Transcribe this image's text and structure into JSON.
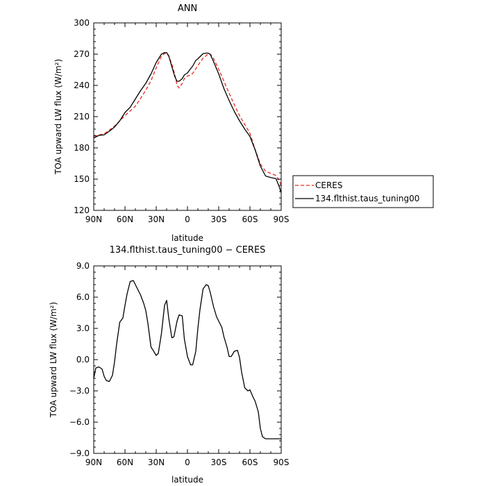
{
  "chart_data": [
    {
      "type": "line",
      "title": "ANN",
      "xlabel": "latitude",
      "ylabel": "TOA upward LW flux (W/m²)",
      "xlim": [
        90,
        -90
      ],
      "ylim": [
        120,
        300
      ],
      "x_ticks": [
        90,
        60,
        30,
        0,
        -30,
        -60,
        -90
      ],
      "x_tick_labels": [
        "90N",
        "60N",
        "30N",
        "0",
        "30S",
        "60S",
        "90S"
      ],
      "y_ticks": [
        120,
        150,
        180,
        210,
        240,
        270,
        300
      ],
      "y_tick_labels": [
        "120",
        "150",
        "180",
        "210",
        "240",
        "270",
        "300"
      ],
      "legend_position": "outside-right",
      "series": [
        {
          "name": "CERES",
          "color": "#e8291e",
          "dash": "dashed",
          "x": [
            90,
            85,
            80,
            75,
            70,
            65,
            60,
            55,
            50,
            45,
            40,
            35,
            30,
            25,
            22,
            20,
            18,
            15,
            12,
            10,
            8,
            5,
            3,
            0,
            -3,
            -5,
            -8,
            -10,
            -12,
            -15,
            -18,
            -20,
            -22,
            -25,
            -30,
            -35,
            -40,
            -45,
            -50,
            -55,
            -60,
            -65,
            -70,
            -75,
            -80,
            -85,
            -88,
            -90
          ],
          "y": [
            191,
            192.5,
            193.5,
            197,
            201,
            206,
            211,
            215.5,
            220,
            227.5,
            235.5,
            244.5,
            257,
            268,
            270.5,
            271,
            268,
            260.5,
            250,
            240,
            237.5,
            242,
            246.5,
            249,
            250,
            251.5,
            256,
            259,
            262,
            266,
            268.5,
            270.5,
            270,
            266,
            255.5,
            244,
            232.5,
            221.5,
            211,
            202.5,
            194,
            178.5,
            164.5,
            157.5,
            155.5,
            153.5,
            149,
            144
          ]
        },
        {
          "name": "134.flthist.taus_tuning00",
          "color": "#000000",
          "dash": "solid",
          "x": [
            90,
            85,
            80,
            75,
            70,
            65,
            60,
            55,
            50,
            45,
            40,
            35,
            30,
            25,
            22,
            20,
            18,
            15,
            12,
            10,
            8,
            5,
            3,
            0,
            -3,
            -5,
            -8,
            -10,
            -12,
            -15,
            -18,
            -20,
            -22,
            -25,
            -30,
            -35,
            -40,
            -45,
            -50,
            -55,
            -60,
            -65,
            -70,
            -75,
            -80,
            -85,
            -88,
            -90
          ],
          "y": [
            189.5,
            192,
            192.5,
            196,
            200,
            206,
            214,
            219,
            227,
            235,
            242,
            251,
            262,
            270,
            271.5,
            271.5,
            268.5,
            258,
            248,
            244,
            244,
            246.5,
            250,
            252,
            256,
            258.5,
            264,
            265.5,
            267.5,
            270.5,
            271,
            271,
            269.5,
            263,
            251,
            237,
            225.5,
            215,
            206,
            198,
            191,
            178,
            162.5,
            153,
            151.5,
            150.5,
            143,
            137
          ]
        }
      ]
    },
    {
      "type": "line",
      "title": "134.flthist.taus_tuning00 − CERES",
      "xlabel": "latitude",
      "ylabel": "TOA upward LW flux (W/m²)",
      "xlim": [
        90,
        -90
      ],
      "ylim": [
        -9,
        9
      ],
      "x_ticks": [
        90,
        60,
        30,
        0,
        -30,
        -60,
        -90
      ],
      "x_tick_labels": [
        "90N",
        "60N",
        "30N",
        "0",
        "30S",
        "60S",
        "90S"
      ],
      "y_ticks": [
        -9,
        -6,
        -3,
        0,
        3,
        6,
        9
      ],
      "y_tick_labels": [
        "−9.0",
        "−6.0",
        "−3.0",
        "0.0",
        "3.0",
        "6.0",
        "9.0"
      ],
      "series": [
        {
          "color": "#000000",
          "dash": "solid",
          "x": [
            90,
            88,
            85,
            82,
            80,
            78,
            75,
            72,
            70,
            68,
            65,
            62,
            60,
            58,
            55,
            52,
            50,
            48,
            45,
            42,
            40,
            38,
            35,
            33,
            30,
            28,
            25,
            22,
            20,
            18,
            15,
            13,
            10,
            8,
            5,
            3,
            0,
            -3,
            -5,
            -8,
            -10,
            -12,
            -15,
            -18,
            -20,
            -22,
            -25,
            -28,
            -30,
            -33,
            -35,
            -38,
            -40,
            -42,
            -45,
            -48,
            -50,
            -52,
            -55,
            -58,
            -60,
            -63,
            -65,
            -68,
            -70,
            -72,
            -75,
            -77,
            -80,
            -82,
            -85,
            -87,
            -90
          ],
          "y": [
            -1.8,
            -0.8,
            -0.7,
            -0.9,
            -1.6,
            -2.0,
            -2.1,
            -1.5,
            -0.2,
            1.5,
            3.6,
            4.0,
            5.2,
            6.3,
            7.5,
            7.6,
            7.2,
            6.8,
            6.2,
            5.4,
            4.7,
            3.5,
            1.2,
            0.9,
            0.4,
            0.6,
            2.5,
            5.2,
            5.7,
            4.0,
            2.1,
            2.2,
            3.7,
            4.3,
            4.2,
            2.0,
            0.3,
            -0.5,
            -0.5,
            0.8,
            3.0,
            4.8,
            6.8,
            7.2,
            7.1,
            6.4,
            5.1,
            4.1,
            3.7,
            3.1,
            2.2,
            1.2,
            0.3,
            0.3,
            0.8,
            0.9,
            0.2,
            -1.2,
            -2.7,
            -3.0,
            -2.9,
            -3.6,
            -4.0,
            -5.0,
            -6.6,
            -7.4,
            -7.6,
            -7.6,
            -7.6,
            -7.6,
            -7.6,
            -7.6,
            -7.6
          ]
        }
      ]
    }
  ],
  "legend": {
    "items": [
      "CERES",
      "134.flthist.taus_tuning00"
    ]
  }
}
